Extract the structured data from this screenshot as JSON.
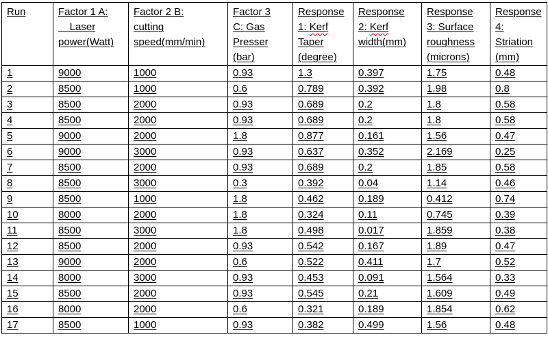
{
  "page": {
    "background": "#ffffff",
    "text_color": "#000000",
    "border_color": "#000000",
    "squiggle_color": "#cc0000"
  },
  "table": {
    "description": "Design of experiments table: laser cutting factors and responses, 17 runs",
    "headers": [
      {
        "lines": [
          "Run"
        ]
      },
      {
        "lines": [
          "Factor 1 A:",
          "    Laser",
          "power(Watt)"
        ]
      },
      {
        "lines": [
          "Factor 2 B:",
          "cutting",
          "speed(mm/min)"
        ]
      },
      {
        "lines": [
          "Factor 3",
          "C: Gas",
          "Presser",
          "(bar)"
        ]
      },
      {
        "lines": [
          "Response",
          "1: Kerf",
          "Taper",
          "(degree)"
        ],
        "squiggle_word": "Kerf"
      },
      {
        "lines": [
          "Response",
          "2: Kerf",
          "width(mm)"
        ],
        "squiggle_word": "Kerf"
      },
      {
        "lines": [
          "Response",
          "3: Surface",
          "roughness",
          "(microns)"
        ]
      },
      {
        "lines": [
          "Response",
          "4:",
          "Striation",
          "(mm)"
        ]
      }
    ],
    "rows": [
      [
        "1",
        "9000",
        "1000",
        "0.93",
        "1.3",
        "0.397",
        "1.75",
        "0.48"
      ],
      [
        "2",
        "8500",
        "1000",
        "0.6",
        "0.789",
        "0.392",
        "1.98",
        "0.8"
      ],
      [
        "3",
        "8500",
        "2000",
        "0.93",
        "0.689",
        "0.2",
        "1.8",
        "0.58"
      ],
      [
        "4",
        "8500",
        "2000",
        "0.93",
        "0.689",
        "0.2",
        "1.8",
        "0.58"
      ],
      [
        "5",
        "9000",
        "2000",
        "1.8",
        "0.877",
        "0.161",
        "1.56",
        "0.47"
      ],
      [
        "6",
        "9000",
        "3000",
        "0.93",
        "0.637",
        "0.352",
        "2.169",
        "0.25"
      ],
      [
        "7",
        "8500",
        "2000",
        "0.93",
        "0.689",
        "0.2",
        "1.85",
        "0.58"
      ],
      [
        "8",
        "8500",
        "3000",
        "0.3",
        "0.392",
        "0.04",
        "1.14",
        "0.46"
      ],
      [
        "9",
        "8500",
        "1000",
        "1.8",
        "0.462",
        "0.189",
        "0.412",
        "0.74"
      ],
      [
        "10",
        "8000",
        "2000",
        "1.8",
        "0.324",
        "0.11",
        "0.745",
        "0.39"
      ],
      [
        "11",
        "8500",
        "3000",
        "1.8",
        "0.498",
        "0.017",
        "1.859",
        "0.38"
      ],
      [
        "12",
        "8500",
        "2000",
        "0.93",
        "0.542",
        "0.167",
        "1.89",
        "0.47"
      ],
      [
        "13",
        "9000",
        "2000",
        "0.6",
        "0.522",
        "0.411",
        "1.7",
        "0.52"
      ],
      [
        "14",
        "8000",
        "3000",
        "0.93",
        "0.453",
        "0.091",
        "1.564",
        "0.33"
      ],
      [
        "15",
        "8500",
        "2000",
        "0.93",
        "0.545",
        "0.21",
        "1.609",
        "0.49"
      ],
      [
        "16",
        "8000",
        "2000",
        "0.6",
        "0.321",
        "0.189",
        "1.854",
        "0.62"
      ],
      [
        "17",
        "8500",
        "1000",
        "0.93",
        "0.382",
        "0.499",
        "1.56",
        "0.48"
      ]
    ]
  }
}
